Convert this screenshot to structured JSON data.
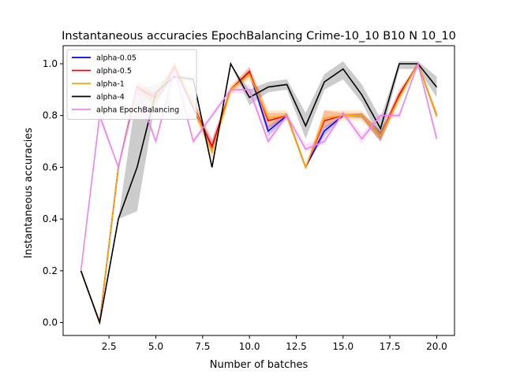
{
  "chart_data": {
    "type": "line",
    "title": "Instantaneous accuracies EpochBalancing Crime-10_10 B10 N 10_10",
    "xlabel": "Number of batches",
    "ylabel": "Instantaneous accuracies",
    "xlim": [
      0.05,
      20.95
    ],
    "ylim": [
      -0.05,
      1.07
    ],
    "xticks": [
      2.5,
      5.0,
      7.5,
      10.0,
      12.5,
      15.0,
      17.5,
      20.0
    ],
    "xtick_labels": [
      "2.5",
      "5.0",
      "7.5",
      "10.0",
      "12.5",
      "15.0",
      "17.5",
      "20.0"
    ],
    "yticks": [
      0.0,
      0.2,
      0.4,
      0.6,
      0.8,
      1.0
    ],
    "ytick_labels": [
      "0.0",
      "0.2",
      "0.4",
      "0.6",
      "0.8",
      "1.0"
    ],
    "legend_position": "top-left",
    "grid": false,
    "x": [
      1,
      2,
      3,
      4,
      5,
      6,
      7,
      8,
      9,
      10,
      11,
      12,
      13,
      14,
      15,
      16,
      17,
      18,
      19,
      20
    ],
    "series": [
      {
        "name": "alpha-0.05",
        "color": "#0000ff",
        "values": [
          0.2,
          0.0,
          0.6,
          0.91,
          0.86,
          0.99,
          0.83,
          0.68,
          0.9,
          0.97,
          0.74,
          0.8,
          0.6,
          0.74,
          0.8,
          0.8,
          0.72,
          0.88,
          1.0,
          0.8
        ],
        "band_low": [
          0.2,
          0.0,
          0.6,
          0.9,
          0.84,
          0.97,
          0.82,
          0.66,
          0.9,
          0.96,
          0.72,
          0.79,
          0.6,
          0.72,
          0.8,
          0.79,
          0.7,
          0.87,
          1.0,
          0.79
        ],
        "band_high": [
          0.2,
          0.0,
          0.6,
          0.92,
          0.88,
          1.0,
          0.84,
          0.7,
          0.9,
          0.98,
          0.76,
          0.81,
          0.6,
          0.76,
          0.8,
          0.81,
          0.74,
          0.89,
          1.0,
          0.81
        ]
      },
      {
        "name": "alpha-0.5",
        "color": "#ff0000",
        "values": [
          0.2,
          0.0,
          0.6,
          0.91,
          0.87,
          0.99,
          0.84,
          0.68,
          0.9,
          0.97,
          0.78,
          0.8,
          0.6,
          0.78,
          0.8,
          0.8,
          0.72,
          0.88,
          1.0,
          0.8
        ],
        "band_low": [
          0.2,
          0.0,
          0.6,
          0.9,
          0.85,
          0.97,
          0.82,
          0.65,
          0.89,
          0.95,
          0.75,
          0.79,
          0.6,
          0.75,
          0.79,
          0.79,
          0.7,
          0.86,
          1.0,
          0.79
        ],
        "band_high": [
          0.2,
          0.0,
          0.6,
          0.93,
          0.89,
          1.0,
          0.86,
          0.71,
          0.91,
          0.99,
          0.81,
          0.81,
          0.6,
          0.82,
          0.81,
          0.81,
          0.74,
          0.9,
          1.0,
          0.81
        ]
      },
      {
        "name": "alpha-1",
        "color": "#ffa500",
        "values": [
          0.2,
          0.0,
          0.6,
          0.9,
          0.86,
          1.0,
          0.84,
          0.66,
          0.9,
          0.96,
          0.79,
          0.8,
          0.6,
          0.79,
          0.8,
          0.8,
          0.72,
          0.87,
          1.0,
          0.8
        ],
        "band_low": [
          0.2,
          0.0,
          0.6,
          0.88,
          0.83,
          0.98,
          0.81,
          0.63,
          0.88,
          0.94,
          0.76,
          0.78,
          0.59,
          0.76,
          0.78,
          0.78,
          0.7,
          0.85,
          0.99,
          0.78
        ],
        "band_high": [
          0.2,
          0.0,
          0.6,
          0.92,
          0.89,
          1.0,
          0.87,
          0.69,
          0.92,
          0.98,
          0.82,
          0.82,
          0.61,
          0.82,
          0.82,
          0.82,
          0.74,
          0.89,
          1.0,
          0.82
        ]
      },
      {
        "name": "alpha-4",
        "color": "#000000",
        "values": [
          0.2,
          0.0,
          0.4,
          0.6,
          0.89,
          0.95,
          0.94,
          0.6,
          1.0,
          0.87,
          0.91,
          0.92,
          0.76,
          0.93,
          0.98,
          0.88,
          0.75,
          1.0,
          1.0,
          0.91
        ],
        "band_low": [
          0.2,
          0.0,
          0.4,
          0.43,
          0.86,
          0.94,
          0.93,
          0.6,
          1.0,
          0.84,
          0.89,
          0.9,
          0.71,
          0.9,
          0.94,
          0.85,
          0.71,
          0.98,
          0.98,
          0.87
        ],
        "band_high": [
          0.2,
          0.0,
          0.4,
          0.9,
          0.92,
          0.96,
          0.95,
          0.6,
          1.0,
          0.9,
          0.93,
          0.94,
          0.81,
          0.96,
          1.01,
          0.92,
          0.79,
          1.01,
          1.01,
          0.95
        ]
      },
      {
        "name": "alpha EpochBalancing",
        "color": "#ee82ee",
        "values": [
          0.2,
          0.8,
          0.6,
          0.9,
          0.7,
          0.98,
          0.7,
          0.8,
          0.9,
          0.9,
          0.7,
          0.8,
          0.67,
          0.7,
          0.81,
          0.71,
          0.8,
          0.8,
          1.0,
          0.71
        ],
        "band_low": [
          0.2,
          0.78,
          0.6,
          0.88,
          0.69,
          0.96,
          0.69,
          0.79,
          0.89,
          0.88,
          0.69,
          0.79,
          0.66,
          0.69,
          0.8,
          0.69,
          0.79,
          0.79,
          1.0,
          0.69
        ],
        "band_high": [
          0.2,
          0.82,
          0.6,
          0.92,
          0.71,
          1.0,
          0.71,
          0.81,
          0.91,
          0.92,
          0.72,
          0.81,
          0.69,
          0.72,
          0.82,
          0.73,
          0.81,
          0.81,
          1.0,
          0.73
        ]
      }
    ]
  }
}
